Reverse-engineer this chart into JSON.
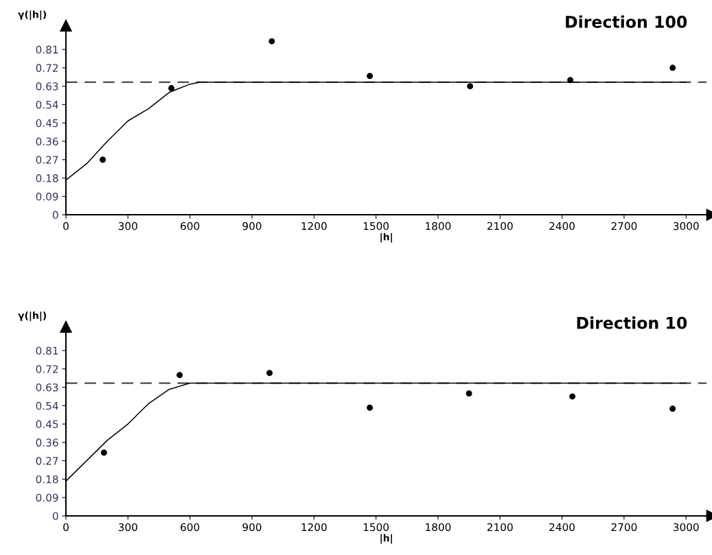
{
  "chart_data": [
    {
      "type": "scatter",
      "title": "Direction 100",
      "xlabel": "|h|",
      "ylabel": "γ(|h|)",
      "x": [
        178,
        510,
        996,
        1470,
        1955,
        2440,
        2935
      ],
      "grid": false,
      "series": [
        {
          "marker": "circle",
          "color": "#000000",
          "values": [
            0.27,
            0.62,
            0.85,
            0.68,
            0.63,
            0.66,
            0.72
          ]
        },
        {
          "type": "line",
          "color": "#000000",
          "x": [
            0,
            100,
            200,
            300,
            400,
            500,
            600,
            650,
            3000
          ],
          "values": [
            0.17,
            0.25,
            0.36,
            0.46,
            0.52,
            0.6,
            0.64,
            0.65,
            0.65
          ]
        }
      ],
      "ref_lines": [
        {
          "axis": "y",
          "value": 0.65,
          "label": null,
          "line_style": "dashed",
          "color": "#333333"
        }
      ],
      "xlim": [
        0,
        3100
      ],
      "ylim": [
        0,
        0.9
      ],
      "xticks": [
        0,
        300,
        600,
        900,
        1200,
        1500,
        1800,
        2100,
        2400,
        2700,
        3000
      ],
      "yticks": [
        0,
        0.09,
        0.18,
        0.27,
        0.36,
        0.45,
        0.54,
        0.63,
        0.72,
        0.81
      ]
    },
    {
      "type": "scatter",
      "title": "Direction 10",
      "xlabel": "|h|",
      "ylabel": "γ(|h|)",
      "x": [
        184,
        550,
        985,
        1470,
        1950,
        2450,
        2935
      ],
      "grid": false,
      "series": [
        {
          "marker": "circle",
          "color": "#000000",
          "values": [
            0.31,
            0.69,
            0.7,
            0.53,
            0.6,
            0.585,
            0.525
          ]
        },
        {
          "type": "line",
          "color": "#000000",
          "x": [
            0,
            100,
            200,
            300,
            400,
            500,
            600,
            620,
            3000
          ],
          "values": [
            0.17,
            0.27,
            0.37,
            0.45,
            0.55,
            0.62,
            0.65,
            0.65,
            0.65
          ]
        }
      ],
      "ref_lines": [
        {
          "axis": "y",
          "value": 0.65,
          "label": null,
          "line_style": "dashed",
          "color": "#333333"
        }
      ],
      "xlim": [
        0,
        3100
      ],
      "ylim": [
        0,
        0.9
      ],
      "xticks": [
        0,
        300,
        600,
        900,
        1200,
        1500,
        1800,
        2100,
        2400,
        2700,
        3000
      ],
      "yticks": [
        0,
        0.09,
        0.18,
        0.27,
        0.36,
        0.45,
        0.54,
        0.63,
        0.72,
        0.81
      ]
    }
  ]
}
